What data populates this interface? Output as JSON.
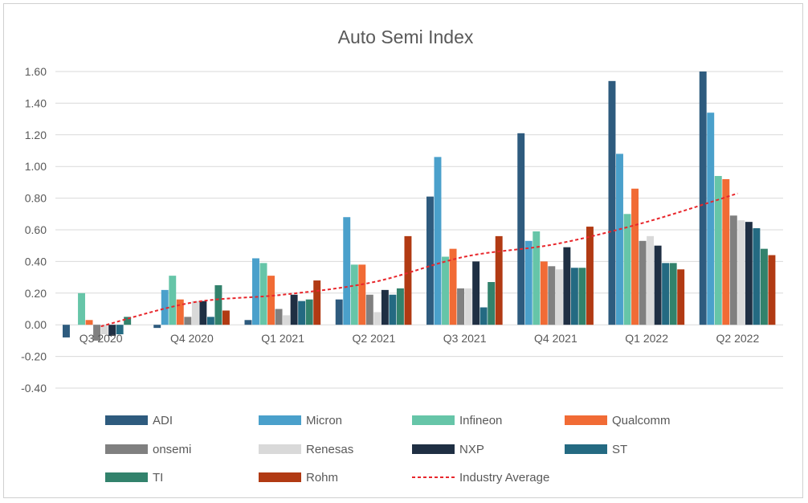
{
  "chart_data": {
    "type": "bar",
    "title": "Auto Semi Index",
    "xlabel": "",
    "ylabel": "",
    "ylim": [
      -0.4,
      1.6
    ],
    "yticks": [
      "1.60",
      "1.40",
      "1.20",
      "1.00",
      "0.80",
      "0.60",
      "0.40",
      "0.20",
      "0.00",
      "-0.20",
      "-0.40"
    ],
    "ytick_values": [
      1.6,
      1.4,
      1.2,
      1.0,
      0.8,
      0.6,
      0.4,
      0.2,
      0.0,
      -0.2,
      -0.4
    ],
    "grid": true,
    "legend_position": "bottom",
    "categories": [
      "Q3 2020",
      "Q4 2020",
      "Q1 2021",
      "Q2 2021",
      "Q3 2021",
      "Q4 2021",
      "Q1 2022",
      "Q2 2022"
    ],
    "series": [
      {
        "name": "ADI",
        "color": "#2e5b7e",
        "values": [
          -0.08,
          -0.02,
          0.03,
          0.16,
          0.81,
          1.21,
          1.54,
          1.6
        ]
      },
      {
        "name": "Micron",
        "color": "#4aa0cb",
        "values": [
          0.0,
          0.22,
          0.42,
          0.68,
          1.06,
          0.53,
          1.08,
          1.34
        ]
      },
      {
        "name": "Infineon",
        "color": "#66c5a8",
        "values": [
          0.2,
          0.31,
          0.39,
          0.38,
          0.43,
          0.59,
          0.7,
          0.94
        ]
      },
      {
        "name": "Qualcomm",
        "color": "#f16b35",
        "values": [
          0.03,
          0.16,
          0.31,
          0.38,
          0.48,
          0.4,
          0.86,
          0.92
        ]
      },
      {
        "name": "onsemi",
        "color": "#808080",
        "values": [
          -0.1,
          0.05,
          0.1,
          0.19,
          0.23,
          0.37,
          0.53,
          0.69
        ]
      },
      {
        "name": "Renesas",
        "color": "#d9d9d9",
        "values": [
          -0.06,
          0.15,
          0.06,
          0.08,
          0.23,
          0.35,
          0.56,
          0.66
        ]
      },
      {
        "name": "NXP",
        "color": "#1f2f43",
        "values": [
          -0.07,
          0.15,
          0.19,
          0.22,
          0.4,
          0.49,
          0.5,
          0.65
        ]
      },
      {
        "name": "ST",
        "color": "#246a82",
        "values": [
          -0.06,
          0.05,
          0.15,
          0.19,
          0.11,
          0.36,
          0.39,
          0.61
        ]
      },
      {
        "name": "TI",
        "color": "#32826c",
        "values": [
          0.05,
          0.25,
          0.16,
          0.23,
          0.27,
          0.36,
          0.39,
          0.48
        ]
      },
      {
        "name": "Rohm",
        "color": "#b13a13",
        "values": [
          0.0,
          0.09,
          0.28,
          0.56,
          0.56,
          0.62,
          0.35,
          0.44
        ]
      }
    ],
    "trendline": {
      "name": "Industry Average",
      "color": "#e8272c",
      "style": "dashed",
      "values": [
        -0.01,
        0.14,
        0.19,
        0.27,
        0.43,
        0.51,
        0.65,
        0.83
      ]
    }
  }
}
